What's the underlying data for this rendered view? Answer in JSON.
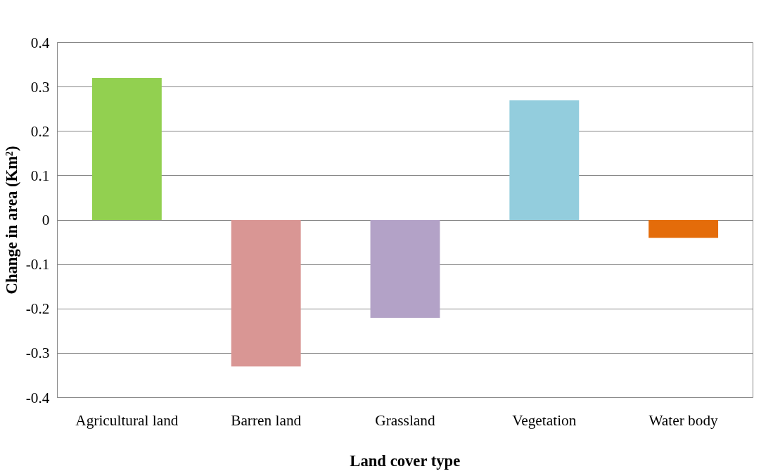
{
  "chart_data": {
    "type": "bar",
    "xlabel": "Land cover type",
    "ylabel": "Change in area (Km²)",
    "categories": [
      "Agricultural land",
      "Barren land",
      "Grassland",
      "Vegetation",
      "Water body"
    ],
    "values": [
      0.32,
      -0.33,
      -0.22,
      0.27,
      -0.04
    ],
    "colors": [
      "#92d050",
      "#d99694",
      "#b3a2c7",
      "#93cddd",
      "#e46c0a"
    ],
    "ylim": [
      -0.4,
      0.4
    ],
    "yticks": [
      -0.4,
      -0.3,
      -0.2,
      -0.1,
      0,
      0.1,
      0.2,
      0.3,
      0.4
    ],
    "grid": "y"
  }
}
